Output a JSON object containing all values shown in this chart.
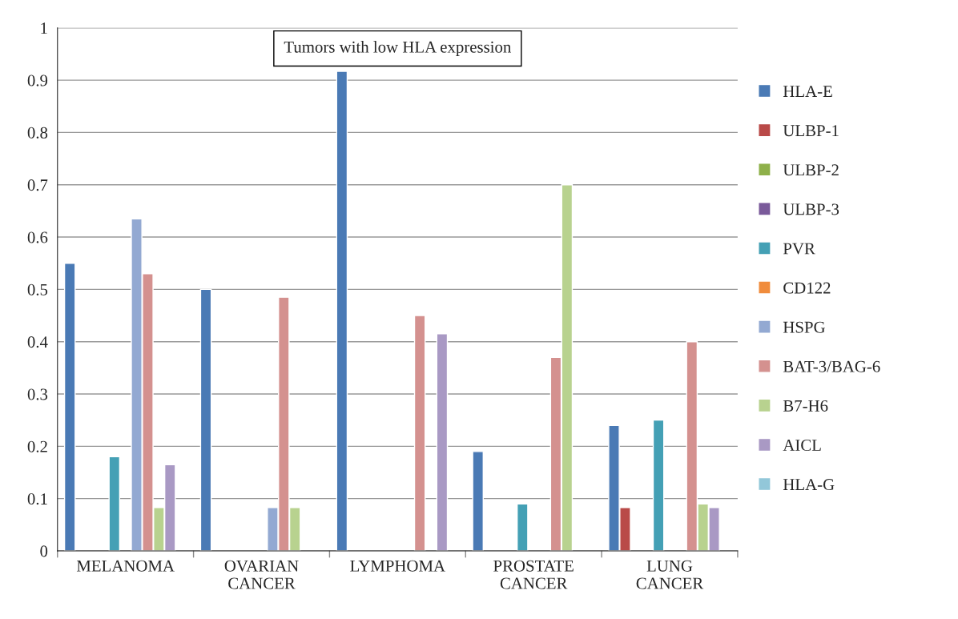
{
  "chart_data": {
    "type": "bar",
    "title": "Tumors with low HLA expression",
    "categories": [
      "MELANOMA",
      "OVARIAN\nCANCER",
      "LYMPHOMA",
      "PROSTATE\nCANCER",
      "LUNG\nCANCER"
    ],
    "series": [
      {
        "name": "HLA-E",
        "color": "#4a7ab5",
        "values": [
          0.55,
          0.5,
          0.917,
          0.19,
          0.24
        ]
      },
      {
        "name": "ULBP-1",
        "color": "#b94a48",
        "values": [
          null,
          null,
          null,
          null,
          0.083
        ]
      },
      {
        "name": "ULBP-2",
        "color": "#8eb04a",
        "values": [
          null,
          null,
          null,
          null,
          null
        ]
      },
      {
        "name": "ULBP-3",
        "color": "#7a5a9a",
        "values": [
          null,
          null,
          null,
          null,
          null
        ]
      },
      {
        "name": "PVR",
        "color": "#44a0b5",
        "values": [
          0.18,
          null,
          null,
          0.09,
          0.25
        ]
      },
      {
        "name": "CD122",
        "color": "#f08c3c",
        "values": [
          null,
          null,
          null,
          null,
          null
        ]
      },
      {
        "name": "HSPG",
        "color": "#93a9d2",
        "values": [
          0.635,
          0.083,
          null,
          null,
          null
        ]
      },
      {
        "name": "BAT-3/BAG-6",
        "color": "#d4918f",
        "values": [
          0.53,
          0.485,
          0.45,
          0.37,
          0.4
        ]
      },
      {
        "name": "B7-H6",
        "color": "#b8d28f",
        "values": [
          0.083,
          0.083,
          null,
          0.7,
          0.09
        ]
      },
      {
        "name": "AICL",
        "color": "#a999c4",
        "values": [
          0.165,
          null,
          0.415,
          null,
          0.083
        ]
      },
      {
        "name": "HLA-G",
        "color": "#92c7d9",
        "values": [
          null,
          null,
          null,
          null,
          null
        ]
      }
    ],
    "ylim": [
      0,
      1
    ],
    "yticks": [
      0,
      0.1,
      0.2,
      0.3,
      0.4,
      0.5,
      0.6,
      0.7,
      0.8,
      0.9,
      1
    ],
    "grid": "y",
    "legend": "right"
  }
}
